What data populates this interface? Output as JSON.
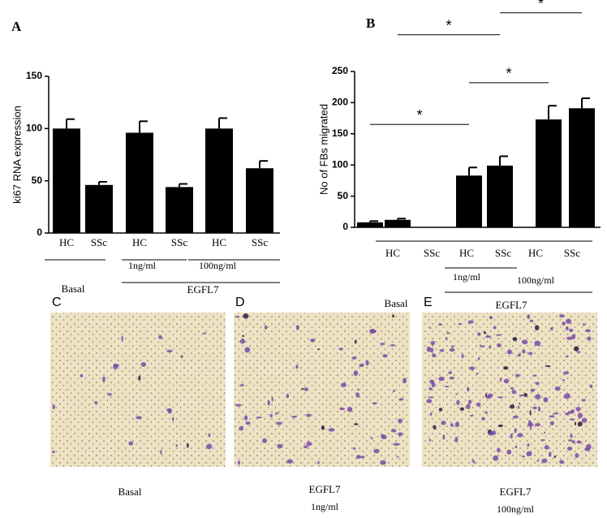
{
  "chart_data": [
    {
      "type": "bar",
      "panel": "A",
      "ylabel": "ki67 RNA expression",
      "categories": [
        "HC",
        "SSc",
        "HC",
        "SSc",
        "HC",
        "SSc"
      ],
      "values": [
        100,
        46,
        96,
        44,
        100,
        62
      ],
      "errors": [
        9,
        3,
        11,
        3,
        10,
        7
      ],
      "color": "#000000",
      "ylim": [
        0,
        150
      ],
      "yticks": [
        0,
        50,
        100,
        150
      ],
      "groups": {
        "basal": "Basal",
        "treatment": "EGFL7",
        "doses": [
          "1ng/ml",
          "100ng/ml"
        ]
      }
    },
    {
      "type": "bar",
      "panel": "B",
      "ylabel": "No of FBs migrated",
      "categories": [
        "HC",
        "SSc",
        "HC",
        "SSc",
        "HC",
        "SSc"
      ],
      "values": [
        8,
        12,
        83,
        99,
        173,
        191
      ],
      "errors": [
        2,
        2,
        13,
        15,
        22,
        16
      ],
      "color": "#000000",
      "ylim": [
        0,
        250
      ],
      "yticks": [
        0,
        50,
        100,
        150,
        200,
        250
      ],
      "groups": {
        "basal": "Basal",
        "treatment": "EGFL7",
        "doses": [
          "1ng/ml",
          "100ng/ml"
        ]
      },
      "annotations": [
        {
          "text": "*",
          "from": 0,
          "to": 2,
          "y": 165
        },
        {
          "text": "*",
          "from": 2,
          "to": 4,
          "y": 232
        },
        {
          "text": "*",
          "from": 1,
          "to": 3,
          "y": 309
        },
        {
          "text": "*",
          "from": 3,
          "to": 5,
          "y": 344
        }
      ]
    }
  ],
  "panels": [
    {
      "label": "C",
      "caption": [
        "Basal"
      ]
    },
    {
      "label": "D",
      "caption": [
        "EGFL7",
        "1ng/ml"
      ]
    },
    {
      "label": "E",
      "caption": [
        "EGFL7",
        "100ng/ml"
      ]
    }
  ]
}
